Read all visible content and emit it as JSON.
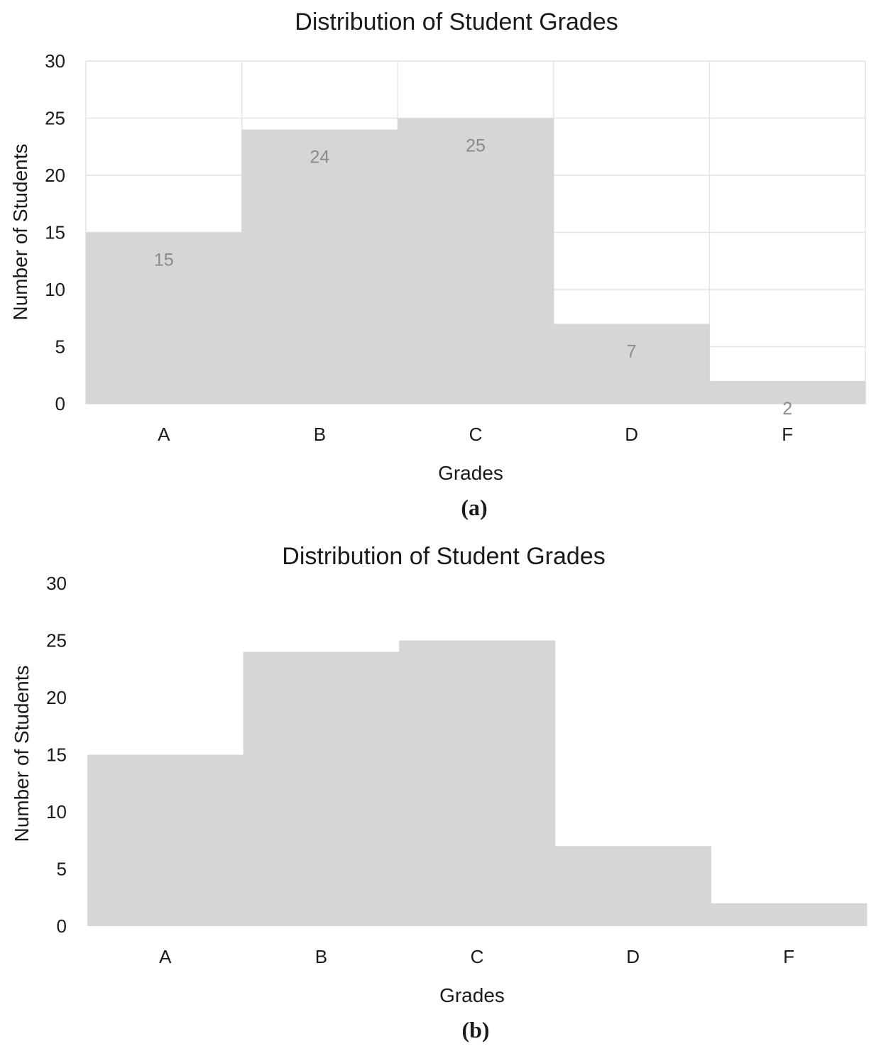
{
  "chart_data": [
    {
      "type": "bar",
      "title": "Distribution of Student Grades",
      "xlabel": "Grades",
      "ylabel": "Number of Students",
      "categories": [
        "A",
        "B",
        "C",
        "D",
        "F"
      ],
      "values": [
        15,
        24,
        25,
        7,
        2
      ],
      "ylim": [
        0,
        30
      ],
      "yticks": [
        0,
        5,
        10,
        15,
        20,
        25,
        30
      ],
      "grid": true,
      "data_labels": true,
      "caption": "(a)",
      "bar_color": "#d6d6d6",
      "grid_color": "#e4e4e4",
      "label_color": "#8a8a8a"
    },
    {
      "type": "bar",
      "title": "Distribution of Student Grades",
      "xlabel": "Grades",
      "ylabel": "Number of Students",
      "categories": [
        "A",
        "B",
        "C",
        "D",
        "F"
      ],
      "values": [
        15,
        24,
        25,
        7,
        2
      ],
      "ylim": [
        0,
        30
      ],
      "yticks": [
        0,
        5,
        10,
        15,
        20,
        25,
        30
      ],
      "grid": false,
      "data_labels": false,
      "caption": "(b)",
      "bar_color": "#d6d6d6",
      "grid_color": "#e4e4e4",
      "label_color": "#8a8a8a"
    }
  ]
}
